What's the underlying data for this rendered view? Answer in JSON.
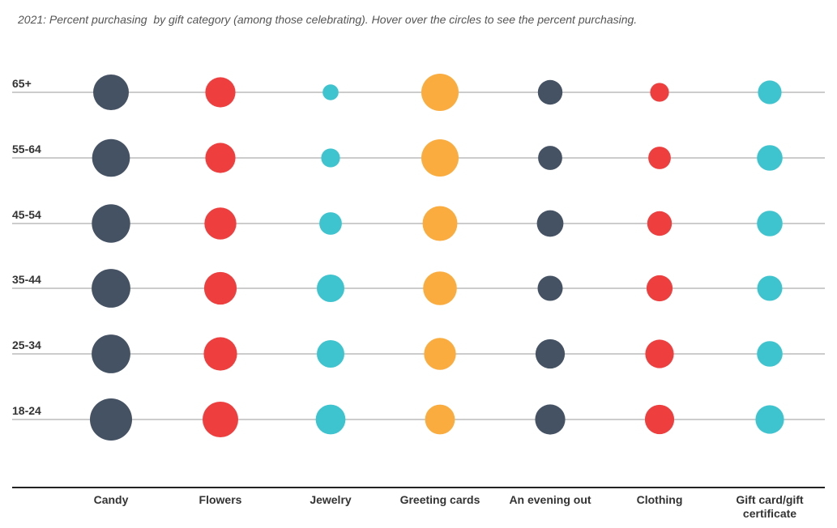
{
  "subtitle": "2021: Percent purchasing  by gift category (among those celebrating). Hover over the circles to see the percent purchasing.",
  "colors": {
    "candy": "#455264",
    "flowers": "#ef3e3e",
    "jewelry": "#3ec4cf",
    "greeting_cards": "#fbac3f",
    "evening_out": "#455264",
    "clothing": "#ef3e3e",
    "gift_card": "#3ec4cf",
    "gridline": "#999999",
    "axis": "#222222"
  },
  "chart_data": {
    "type": "bubble",
    "title": "",
    "categories": [
      "Candy",
      "Flowers",
      "Jewelry",
      "Greeting cards",
      "An evening out",
      "Clothing",
      "Gift card/gift certificate"
    ],
    "category_label_lines": [
      [
        "Candy"
      ],
      [
        "Flowers"
      ],
      [
        "Jewelry"
      ],
      [
        "Greeting cards"
      ],
      [
        "An evening out"
      ],
      [
        "Clothing"
      ],
      [
        "Gift card/gift",
        "certificate"
      ]
    ],
    "series_colors": [
      "#455264",
      "#ef3e3e",
      "#3ec4cf",
      "#fbac3f",
      "#455264",
      "#ef3e3e",
      "#3ec4cf"
    ],
    "rows": [
      {
        "label": "65+",
        "values": [
          50,
          36,
          10,
          55,
          24,
          14,
          22
        ]
      },
      {
        "label": "55-64",
        "values": [
          56,
          36,
          14,
          55,
          23,
          20,
          26
        ]
      },
      {
        "label": "45-54",
        "values": [
          58,
          40,
          20,
          48,
          28,
          24,
          26
        ]
      },
      {
        "label": "35-44",
        "values": [
          59,
          42,
          30,
          45,
          25,
          27,
          25
        ]
      },
      {
        "label": "25-34",
        "values": [
          59,
          44,
          30,
          40,
          34,
          32,
          26
        ]
      },
      {
        "label": "18-24",
        "values": [
          70,
          50,
          35,
          35,
          36,
          34,
          32
        ]
      }
    ]
  }
}
